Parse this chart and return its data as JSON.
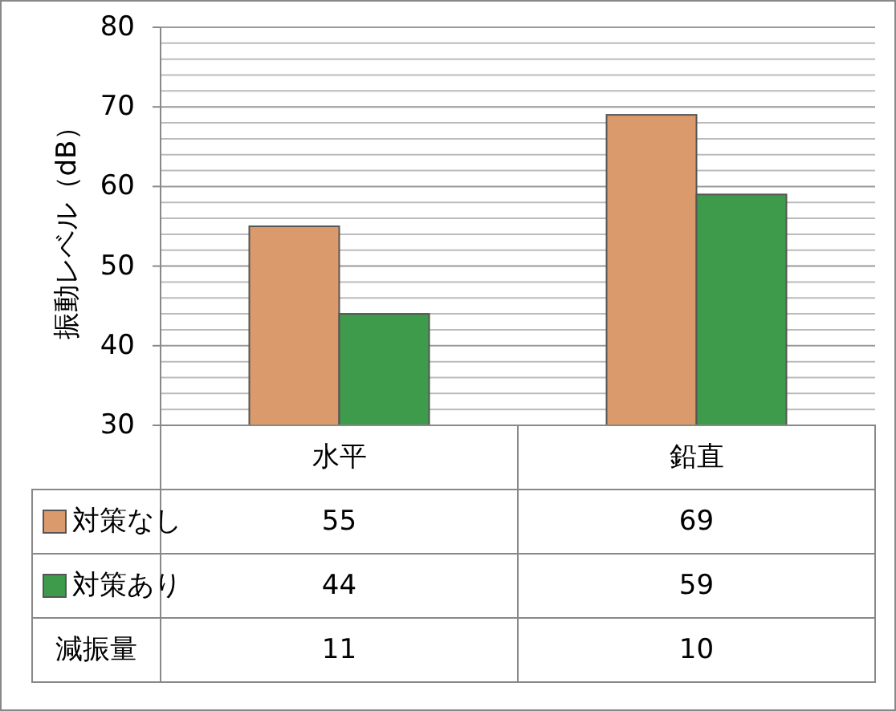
{
  "chart_data": {
    "type": "bar",
    "ylabel": "振動レベル（dB）",
    "categories": [
      "水平",
      "鉛直"
    ],
    "series": [
      {
        "name": "対策なし",
        "color": "#da9a6b",
        "values": [
          55,
          69
        ]
      },
      {
        "name": "対策あり",
        "color": "#3f9b4c",
        "values": [
          44,
          59
        ]
      }
    ],
    "ylim": [
      30,
      80
    ],
    "yticks": [
      30,
      40,
      50,
      60,
      70,
      80
    ],
    "grid": "y",
    "data_labels": true,
    "legend": "bottom",
    "annotations": [
      "減振量",
      "11",
      "10"
    ]
  }
}
